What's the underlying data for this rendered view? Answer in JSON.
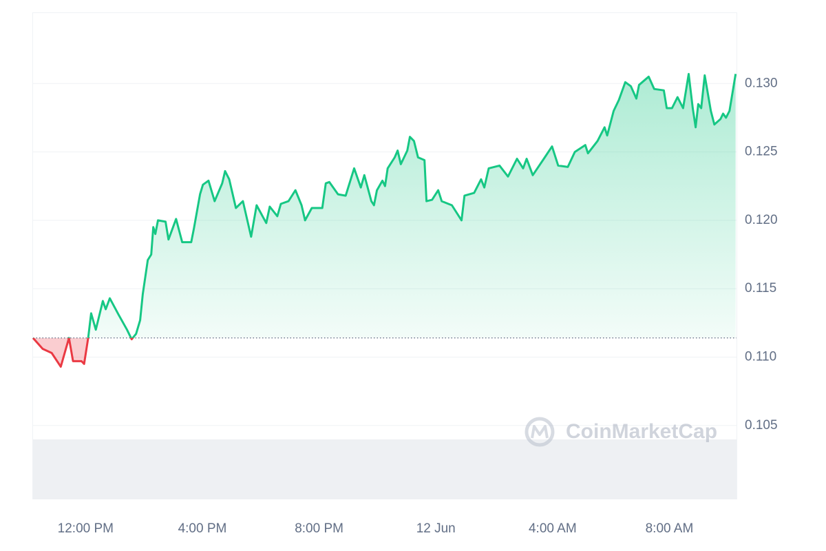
{
  "chart_data": {
    "type": "line",
    "watermark": "CoinMarketCap",
    "x": [
      10.2,
      10.53,
      10.84,
      11.15,
      11.43,
      11.57,
      11.86,
      11.95,
      12.09,
      12.19,
      12.35,
      12.59,
      12.69,
      12.83,
      13.13,
      13.42,
      13.58,
      13.73,
      13.87,
      13.96,
      14.13,
      14.25,
      14.32,
      14.39,
      14.48,
      14.74,
      14.84,
      15.1,
      15.31,
      15.62,
      15.71,
      15.92,
      16.02,
      16.21,
      16.42,
      16.68,
      16.78,
      16.92,
      17.15,
      17.39,
      17.67,
      17.86,
      18.19,
      18.31,
      18.57,
      18.69,
      18.95,
      19.19,
      19.4,
      19.52,
      19.75,
      20.11,
      20.23,
      20.35,
      20.65,
      20.91,
      21.2,
      21.43,
      21.55,
      21.79,
      21.88,
      21.98,
      22.17,
      22.26,
      22.35,
      22.59,
      22.69,
      22.8,
      23.02,
      23.11,
      23.25,
      23.39,
      23.61,
      23.68,
      23.87,
      24.08,
      24.2,
      24.55,
      24.88,
      24.98,
      25.31,
      25.55,
      25.66,
      25.81,
      26.18,
      26.47,
      26.78,
      26.99,
      27.11,
      27.32,
      27.7,
      27.98,
      28.19,
      28.52,
      28.76,
      29.12,
      29.21,
      29.54,
      29.78,
      29.87,
      30.09,
      30.27,
      30.49,
      30.68,
      30.87,
      30.96,
      31.29,
      31.48,
      31.81,
      31.91,
      32.09,
      32.28,
      32.47,
      32.66,
      32.8,
      32.9,
      32.99,
      33.09,
      33.21,
      33.42,
      33.54,
      33.75,
      33.84,
      33.94,
      34.06,
      34.27
    ],
    "series": [
      {
        "up_color": "#16c784",
        "down_color": "#ea3943",
        "values": [
          0.1114,
          0.1106,
          0.1103,
          0.1093,
          0.1114,
          0.1097,
          0.1097,
          0.1095,
          0.1114,
          0.1132,
          0.112,
          0.1141,
          0.1135,
          0.1143,
          0.1131,
          0.112,
          0.1113,
          0.1117,
          0.1127,
          0.1146,
          0.1171,
          0.1175,
          0.1195,
          0.119,
          0.12,
          0.1199,
          0.1186,
          0.1201,
          0.1184,
          0.1184,
          0.1194,
          0.1219,
          0.1226,
          0.1229,
          0.1214,
          0.1227,
          0.1236,
          0.123,
          0.1209,
          0.1214,
          0.1188,
          0.1211,
          0.1198,
          0.121,
          0.1203,
          0.1212,
          0.1214,
          0.1222,
          0.1211,
          0.12,
          0.1209,
          0.1209,
          0.1227,
          0.1228,
          0.1219,
          0.1218,
          0.1238,
          0.1224,
          0.1233,
          0.1214,
          0.1211,
          0.1222,
          0.1229,
          0.1225,
          0.1238,
          0.1246,
          0.1251,
          0.1241,
          0.1251,
          0.1261,
          0.1258,
          0.1246,
          0.1244,
          0.1214,
          0.1215,
          0.1222,
          0.1214,
          0.1211,
          0.12,
          0.1218,
          0.122,
          0.123,
          0.1224,
          0.1238,
          0.124,
          0.1232,
          0.1245,
          0.1238,
          0.1245,
          0.1233,
          0.1245,
          0.1254,
          0.124,
          0.1239,
          0.125,
          0.1255,
          0.1249,
          0.1258,
          0.1268,
          0.1262,
          0.128,
          0.1288,
          0.1301,
          0.1298,
          0.1289,
          0.1299,
          0.1305,
          0.1296,
          0.1295,
          0.1282,
          0.1282,
          0.129,
          0.1282,
          0.1307,
          0.1282,
          0.1268,
          0.1285,
          0.1282,
          0.1306,
          0.128,
          0.127,
          0.1274,
          0.1278,
          0.1275,
          0.128,
          0.1307
        ]
      }
    ],
    "baseline": 0.1114,
    "xlim": [
      10.2,
      34.3
    ],
    "xticks": [
      {
        "value": 12,
        "label": "12:00 PM"
      },
      {
        "value": 16,
        "label": "4:00 PM"
      },
      {
        "value": 20,
        "label": "8:00 PM"
      },
      {
        "value": 24,
        "label": "12 Jun"
      },
      {
        "value": 28,
        "label": "4:00 AM"
      },
      {
        "value": 32,
        "label": "8:00 AM"
      }
    ],
    "ylim": [
      0.0996,
      0.1352
    ],
    "yticks": [
      0.105,
      {
        "value": 0.11,
        "label": "0.110"
      },
      0.115,
      {
        "value": 0.12,
        "label": "0.120"
      },
      0.125,
      {
        "value": 0.13,
        "label": "0.130"
      }
    ],
    "grid": true
  }
}
